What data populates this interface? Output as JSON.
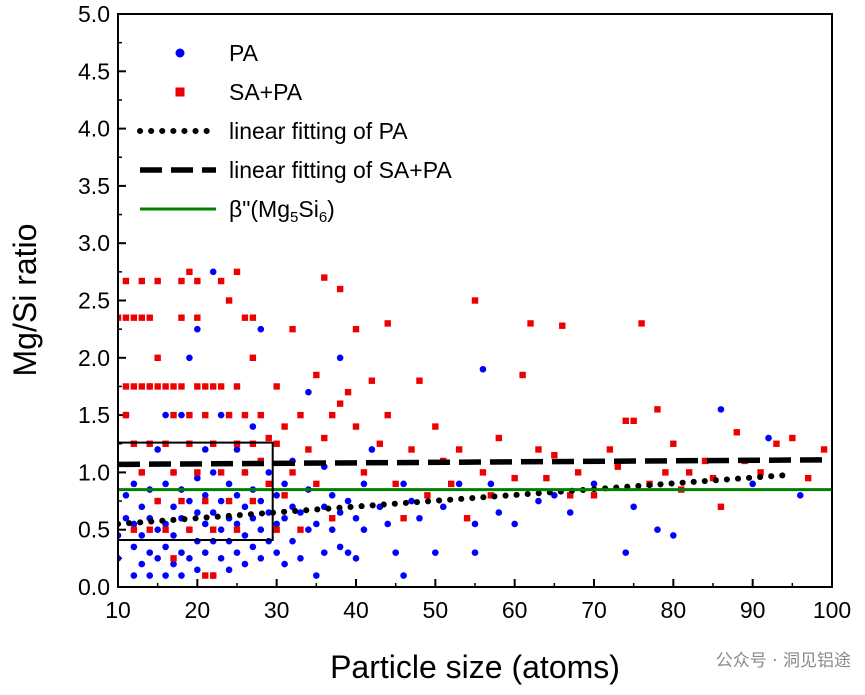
{
  "chart_data": {
    "type": "scatter",
    "xlabel": "Particle size (atoms)",
    "ylabel": "Mg/Si ratio",
    "xlim": [
      10,
      100
    ],
    "ylim": [
      0,
      5
    ],
    "xticks": [
      "10",
      "20",
      "30",
      "40",
      "50",
      "60",
      "70",
      "80",
      "90",
      "100"
    ],
    "yticks": [
      "0.0",
      "0.5",
      "1.0",
      "1.5",
      "2.0",
      "2.5",
      "3.0",
      "3.5",
      "4.0",
      "4.5",
      "5.0"
    ],
    "legend_position": "top-left",
    "series": [
      {
        "name": "PA",
        "marker": "circle",
        "color": "#0000ff",
        "points": [
          [
            10,
            0.25
          ],
          [
            10,
            0.45
          ],
          [
            11,
            0.6
          ],
          [
            11,
            0.8
          ],
          [
            11,
            1.5
          ],
          [
            12,
            0.1
          ],
          [
            12,
            0.35
          ],
          [
            12,
            0.55
          ],
          [
            12,
            0.9
          ],
          [
            13,
            0.2
          ],
          [
            13,
            0.45
          ],
          [
            13,
            0.7
          ],
          [
            13,
            1.0
          ],
          [
            14,
            0.1
          ],
          [
            14,
            0.3
          ],
          [
            14,
            0.6
          ],
          [
            14,
            0.85
          ],
          [
            14,
            1.75
          ],
          [
            15,
            0.25
          ],
          [
            15,
            0.5
          ],
          [
            15,
            0.75
          ],
          [
            15,
            1.2
          ],
          [
            16,
            0.1
          ],
          [
            16,
            0.35
          ],
          [
            16,
            0.55
          ],
          [
            16,
            0.9
          ],
          [
            16,
            1.5
          ],
          [
            17,
            0.2
          ],
          [
            17,
            0.45
          ],
          [
            17,
            0.7
          ],
          [
            17,
            1.0
          ],
          [
            18,
            0.1
          ],
          [
            18,
            0.3
          ],
          [
            18,
            0.6
          ],
          [
            18,
            0.85
          ],
          [
            18,
            1.5
          ],
          [
            19,
            0.25
          ],
          [
            19,
            0.5
          ],
          [
            19,
            0.75
          ],
          [
            19,
            2.0
          ],
          [
            20,
            0.15
          ],
          [
            20,
            0.4
          ],
          [
            20,
            0.65
          ],
          [
            20,
            0.95
          ],
          [
            20,
            2.25
          ],
          [
            21,
            0.3
          ],
          [
            21,
            0.55
          ],
          [
            21,
            0.8
          ],
          [
            21,
            1.2
          ],
          [
            22,
            0.1
          ],
          [
            22,
            0.4
          ],
          [
            22,
            0.65
          ],
          [
            22,
            1.0
          ],
          [
            22,
            2.75
          ],
          [
            23,
            0.25
          ],
          [
            23,
            0.5
          ],
          [
            23,
            0.75
          ],
          [
            23,
            1.5
          ],
          [
            24,
            0.15
          ],
          [
            24,
            0.4
          ],
          [
            24,
            0.6
          ],
          [
            24,
            0.9
          ],
          [
            25,
            0.3
          ],
          [
            25,
            0.55
          ],
          [
            25,
            0.8
          ],
          [
            25,
            1.2
          ],
          [
            26,
            0.2
          ],
          [
            26,
            0.45
          ],
          [
            26,
            0.7
          ],
          [
            26,
            1.0
          ],
          [
            27,
            0.35
          ],
          [
            27,
            0.6
          ],
          [
            27,
            0.85
          ],
          [
            27,
            1.4
          ],
          [
            28,
            0.25
          ],
          [
            28,
            0.5
          ],
          [
            28,
            0.75
          ],
          [
            28,
            2.25
          ],
          [
            29,
            0.4
          ],
          [
            29,
            0.65
          ],
          [
            29,
            1.0
          ],
          [
            30,
            0.3
          ],
          [
            30,
            0.55
          ],
          [
            30,
            0.8
          ],
          [
            31,
            0.2
          ],
          [
            31,
            0.6
          ],
          [
            31,
            0.9
          ],
          [
            32,
            0.4
          ],
          [
            32,
            0.7
          ],
          [
            32,
            1.1
          ],
          [
            33,
            0.25
          ],
          [
            33,
            0.65
          ],
          [
            34,
            0.5
          ],
          [
            34,
            0.85
          ],
          [
            34,
            1.7
          ],
          [
            35,
            0.1
          ],
          [
            35,
            0.55
          ],
          [
            36,
            0.3
          ],
          [
            36,
            0.7
          ],
          [
            36,
            1.05
          ],
          [
            37,
            0.5
          ],
          [
            37,
            0.8
          ],
          [
            38,
            0.35
          ],
          [
            38,
            0.65
          ],
          [
            38,
            2.0
          ],
          [
            39,
            0.3
          ],
          [
            39,
            0.75
          ],
          [
            40,
            0.25
          ],
          [
            40,
            0.6
          ],
          [
            41,
            0.5
          ],
          [
            41,
            0.9
          ],
          [
            42,
            1.2
          ],
          [
            43,
            0.7
          ],
          [
            44,
            0.55
          ],
          [
            45,
            0.3
          ],
          [
            46,
            0.1
          ],
          [
            46,
            0.9
          ],
          [
            47,
            0.75
          ],
          [
            48,
            0.6
          ],
          [
            50,
            0.3
          ],
          [
            51,
            0.7
          ],
          [
            53,
            0.9
          ],
          [
            55,
            0.3
          ],
          [
            55,
            0.55
          ],
          [
            56,
            1.9
          ],
          [
            57,
            0.9
          ],
          [
            58,
            0.65
          ],
          [
            60,
            0.55
          ],
          [
            63,
            0.75
          ],
          [
            65,
            0.8
          ],
          [
            67,
            0.65
          ],
          [
            70,
            0.9
          ],
          [
            74,
            0.3
          ],
          [
            75,
            0.7
          ],
          [
            78,
            0.5
          ],
          [
            80,
            0.45
          ],
          [
            86,
            1.55
          ],
          [
            90,
            0.9
          ],
          [
            92,
            1.3
          ],
          [
            96,
            0.8
          ]
        ]
      },
      {
        "name": "SA+PA",
        "marker": "square",
        "color": "#ee0000",
        "points": [
          [
            10,
            2.35
          ],
          [
            11,
            2.35
          ],
          [
            11,
            2.67
          ],
          [
            11,
            1.75
          ],
          [
            11,
            1.5
          ],
          [
            12,
            2.35
          ],
          [
            12,
            1.75
          ],
          [
            12,
            1.25
          ],
          [
            12,
            0.5
          ],
          [
            13,
            2.35
          ],
          [
            13,
            2.67
          ],
          [
            13,
            1.75
          ],
          [
            13,
            1.0
          ],
          [
            14,
            2.35
          ],
          [
            14,
            1.75
          ],
          [
            14,
            1.25
          ],
          [
            14,
            0.5
          ],
          [
            15,
            1.75
          ],
          [
            15,
            2.0
          ],
          [
            15,
            2.67
          ],
          [
            15,
            0.75
          ],
          [
            16,
            1.75
          ],
          [
            16,
            1.25
          ],
          [
            16,
            0.5
          ],
          [
            17,
            1.75
          ],
          [
            17,
            1.5
          ],
          [
            17,
            1.0
          ],
          [
            17,
            0.25
          ],
          [
            18,
            2.67
          ],
          [
            18,
            1.75
          ],
          [
            18,
            2.35
          ],
          [
            18,
            0.75
          ],
          [
            19,
            2.75
          ],
          [
            19,
            1.5
          ],
          [
            19,
            1.25
          ],
          [
            19,
            0.5
          ],
          [
            20,
            2.67
          ],
          [
            20,
            1.75
          ],
          [
            20,
            1.0
          ],
          [
            20,
            2.35
          ],
          [
            21,
            1.75
          ],
          [
            21,
            1.5
          ],
          [
            21,
            0.75
          ],
          [
            21,
            0.1
          ],
          [
            22,
            1.75
          ],
          [
            22,
            1.25
          ],
          [
            22,
            0.5
          ],
          [
            22,
            0.1
          ],
          [
            23,
            2.67
          ],
          [
            23,
            1.75
          ],
          [
            23,
            1.0
          ],
          [
            24,
            2.5
          ],
          [
            24,
            1.5
          ],
          [
            24,
            0.75
          ],
          [
            25,
            2.75
          ],
          [
            25,
            1.75
          ],
          [
            25,
            1.25
          ],
          [
            25,
            0.5
          ],
          [
            26,
            2.35
          ],
          [
            26,
            1.5
          ],
          [
            26,
            1.0
          ],
          [
            27,
            2.35
          ],
          [
            27,
            2.0
          ],
          [
            27,
            1.25
          ],
          [
            27,
            0.75
          ],
          [
            28,
            1.5
          ],
          [
            28,
            1.1
          ],
          [
            29,
            1.3
          ],
          [
            29,
            0.9
          ],
          [
            30,
            1.75
          ],
          [
            30,
            1.25
          ],
          [
            30,
            0.5
          ],
          [
            31,
            1.4
          ],
          [
            31,
            0.8
          ],
          [
            32,
            2.25
          ],
          [
            32,
            1.0
          ],
          [
            33,
            1.5
          ],
          [
            33,
            0.5
          ],
          [
            34,
            1.2
          ],
          [
            35,
            1.85
          ],
          [
            35,
            0.9
          ],
          [
            36,
            2.7
          ],
          [
            36,
            1.3
          ],
          [
            37,
            1.5
          ],
          [
            37,
            0.6
          ],
          [
            38,
            2.6
          ],
          [
            38,
            1.6
          ],
          [
            39,
            1.7
          ],
          [
            40,
            2.25
          ],
          [
            40,
            1.4
          ],
          [
            41,
            1.0
          ],
          [
            42,
            1.8
          ],
          [
            43,
            1.25
          ],
          [
            44,
            2.3
          ],
          [
            44,
            1.5
          ],
          [
            45,
            0.9
          ],
          [
            46,
            0.6
          ],
          [
            47,
            1.2
          ],
          [
            48,
            1.8
          ],
          [
            49,
            0.8
          ],
          [
            50,
            1.4
          ],
          [
            51,
            1.1
          ],
          [
            52,
            0.9
          ],
          [
            53,
            1.2
          ],
          [
            54,
            0.6
          ],
          [
            55,
            2.5
          ],
          [
            56,
            1.0
          ],
          [
            57,
            0.8
          ],
          [
            58,
            1.3
          ],
          [
            60,
            0.95
          ],
          [
            61,
            1.85
          ],
          [
            62,
            2.3
          ],
          [
            63,
            1.2
          ],
          [
            64,
            0.95
          ],
          [
            65,
            1.15
          ],
          [
            66,
            2.28
          ],
          [
            67,
            0.8
          ],
          [
            68,
            1.0
          ],
          [
            70,
            0.8
          ],
          [
            72,
            1.2
          ],
          [
            73,
            1.05
          ],
          [
            74,
            1.45
          ],
          [
            75,
            1.45
          ],
          [
            76,
            2.3
          ],
          [
            77,
            0.9
          ],
          [
            78,
            1.55
          ],
          [
            79,
            1.0
          ],
          [
            80,
            1.25
          ],
          [
            81,
            0.85
          ],
          [
            82,
            1.0
          ],
          [
            84,
            1.1
          ],
          [
            85,
            0.95
          ],
          [
            86,
            0.7
          ],
          [
            88,
            1.35
          ],
          [
            89,
            1.1
          ],
          [
            91,
            1.0
          ],
          [
            93,
            1.25
          ],
          [
            95,
            1.3
          ],
          [
            97,
            0.95
          ],
          [
            99,
            1.2
          ]
        ]
      },
      {
        "name": "linear fitting of PA",
        "line_style": "dotted",
        "color": "#000000",
        "x": [
          10,
          95
        ],
        "y": [
          0.55,
          0.98
        ]
      },
      {
        "name": "linear fitting of SA+PA",
        "line_style": "dashed",
        "color": "#000000",
        "x": [
          10,
          100
        ],
        "y": [
          1.07,
          1.11
        ]
      },
      {
        "name": "β\"(Mg5Si6)",
        "line_style": "solid",
        "color": "#008000",
        "x": [
          10,
          100
        ],
        "y": [
          0.85,
          0.85
        ]
      }
    ],
    "legend": [
      {
        "label_main": "PA",
        "sym": "circle",
        "color": "#0000ff"
      },
      {
        "label_main": "SA+PA",
        "sym": "square",
        "color": "#ee0000"
      },
      {
        "label_main": "linear fitting of PA",
        "sym": "dotted",
        "color": "#000000"
      },
      {
        "label_main": "linear fitting of SA+PA",
        "sym": "dashed",
        "color": "#000000"
      },
      {
        "label_main": "β\"(Mg",
        "sub1": "5",
        "mid": "Si",
        "sub2": "6",
        "tail": ")",
        "sym": "solid",
        "color": "#008000"
      }
    ],
    "highlight_box": {
      "x": [
        10,
        29.5
      ],
      "y": [
        0.41,
        1.26
      ]
    }
  },
  "watermark": "公众号 · 洞见铝途"
}
